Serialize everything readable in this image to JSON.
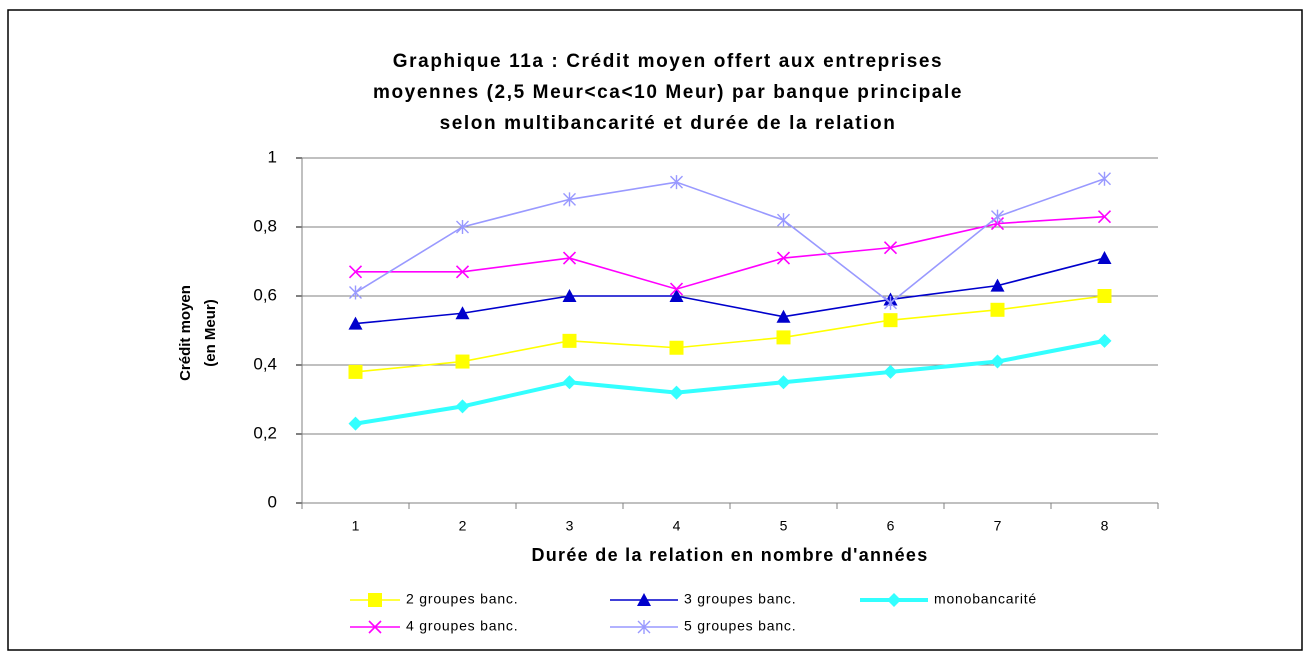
{
  "chart_data": {
    "type": "line",
    "title": [
      "Graphique 11a : Crédit moyen offert aux entreprises",
      "moyennes (2,5 Meur<ca<10 Meur) par banque principale",
      "selon multibancarité et durée de la relation"
    ],
    "x_label": "Durée de la relation en nombre d'années",
    "y_label": [
      "Crédit moyen",
      "(en Meur)"
    ],
    "categories": [
      "1",
      "2",
      "3",
      "4",
      "5",
      "6",
      "7",
      "8"
    ],
    "ylim": [
      0,
      1
    ],
    "yticks": [
      0,
      {
        "value": 0.2,
        "label": "0,2"
      },
      {
        "value": 0.4,
        "label": "0,4"
      },
      {
        "value": 0.6,
        "label": "0,6"
      },
      {
        "value": 0.8,
        "label": "0,8"
      },
      1
    ],
    "grid": true,
    "series": [
      {
        "name": "2 groupes banc.",
        "color": "#ffff00",
        "marker": "square",
        "values": [
          0.38,
          0.41,
          0.47,
          0.45,
          0.48,
          0.53,
          0.56,
          0.6
        ]
      },
      {
        "name": "3 groupes banc.",
        "color": "#0000cc",
        "marker": "triangle",
        "values": [
          0.52,
          0.55,
          0.6,
          0.6,
          0.54,
          0.59,
          0.63,
          0.71
        ]
      },
      {
        "name": "monobancarité",
        "color": "#33ffff",
        "marker": "diamond",
        "values": [
          0.23,
          0.28,
          0.35,
          0.32,
          0.35,
          0.38,
          0.41,
          0.47
        ]
      },
      {
        "name": "4 groupes banc.",
        "color": "#ff00ff",
        "marker": "x",
        "values": [
          0.67,
          0.67,
          0.71,
          0.62,
          0.71,
          0.74,
          0.81,
          0.83
        ]
      },
      {
        "name": "5 groupes banc.",
        "color": "#9999ff",
        "marker": "star",
        "values": [
          0.61,
          0.8,
          0.88,
          0.93,
          0.82,
          0.58,
          0.83,
          0.94
        ]
      }
    ]
  }
}
